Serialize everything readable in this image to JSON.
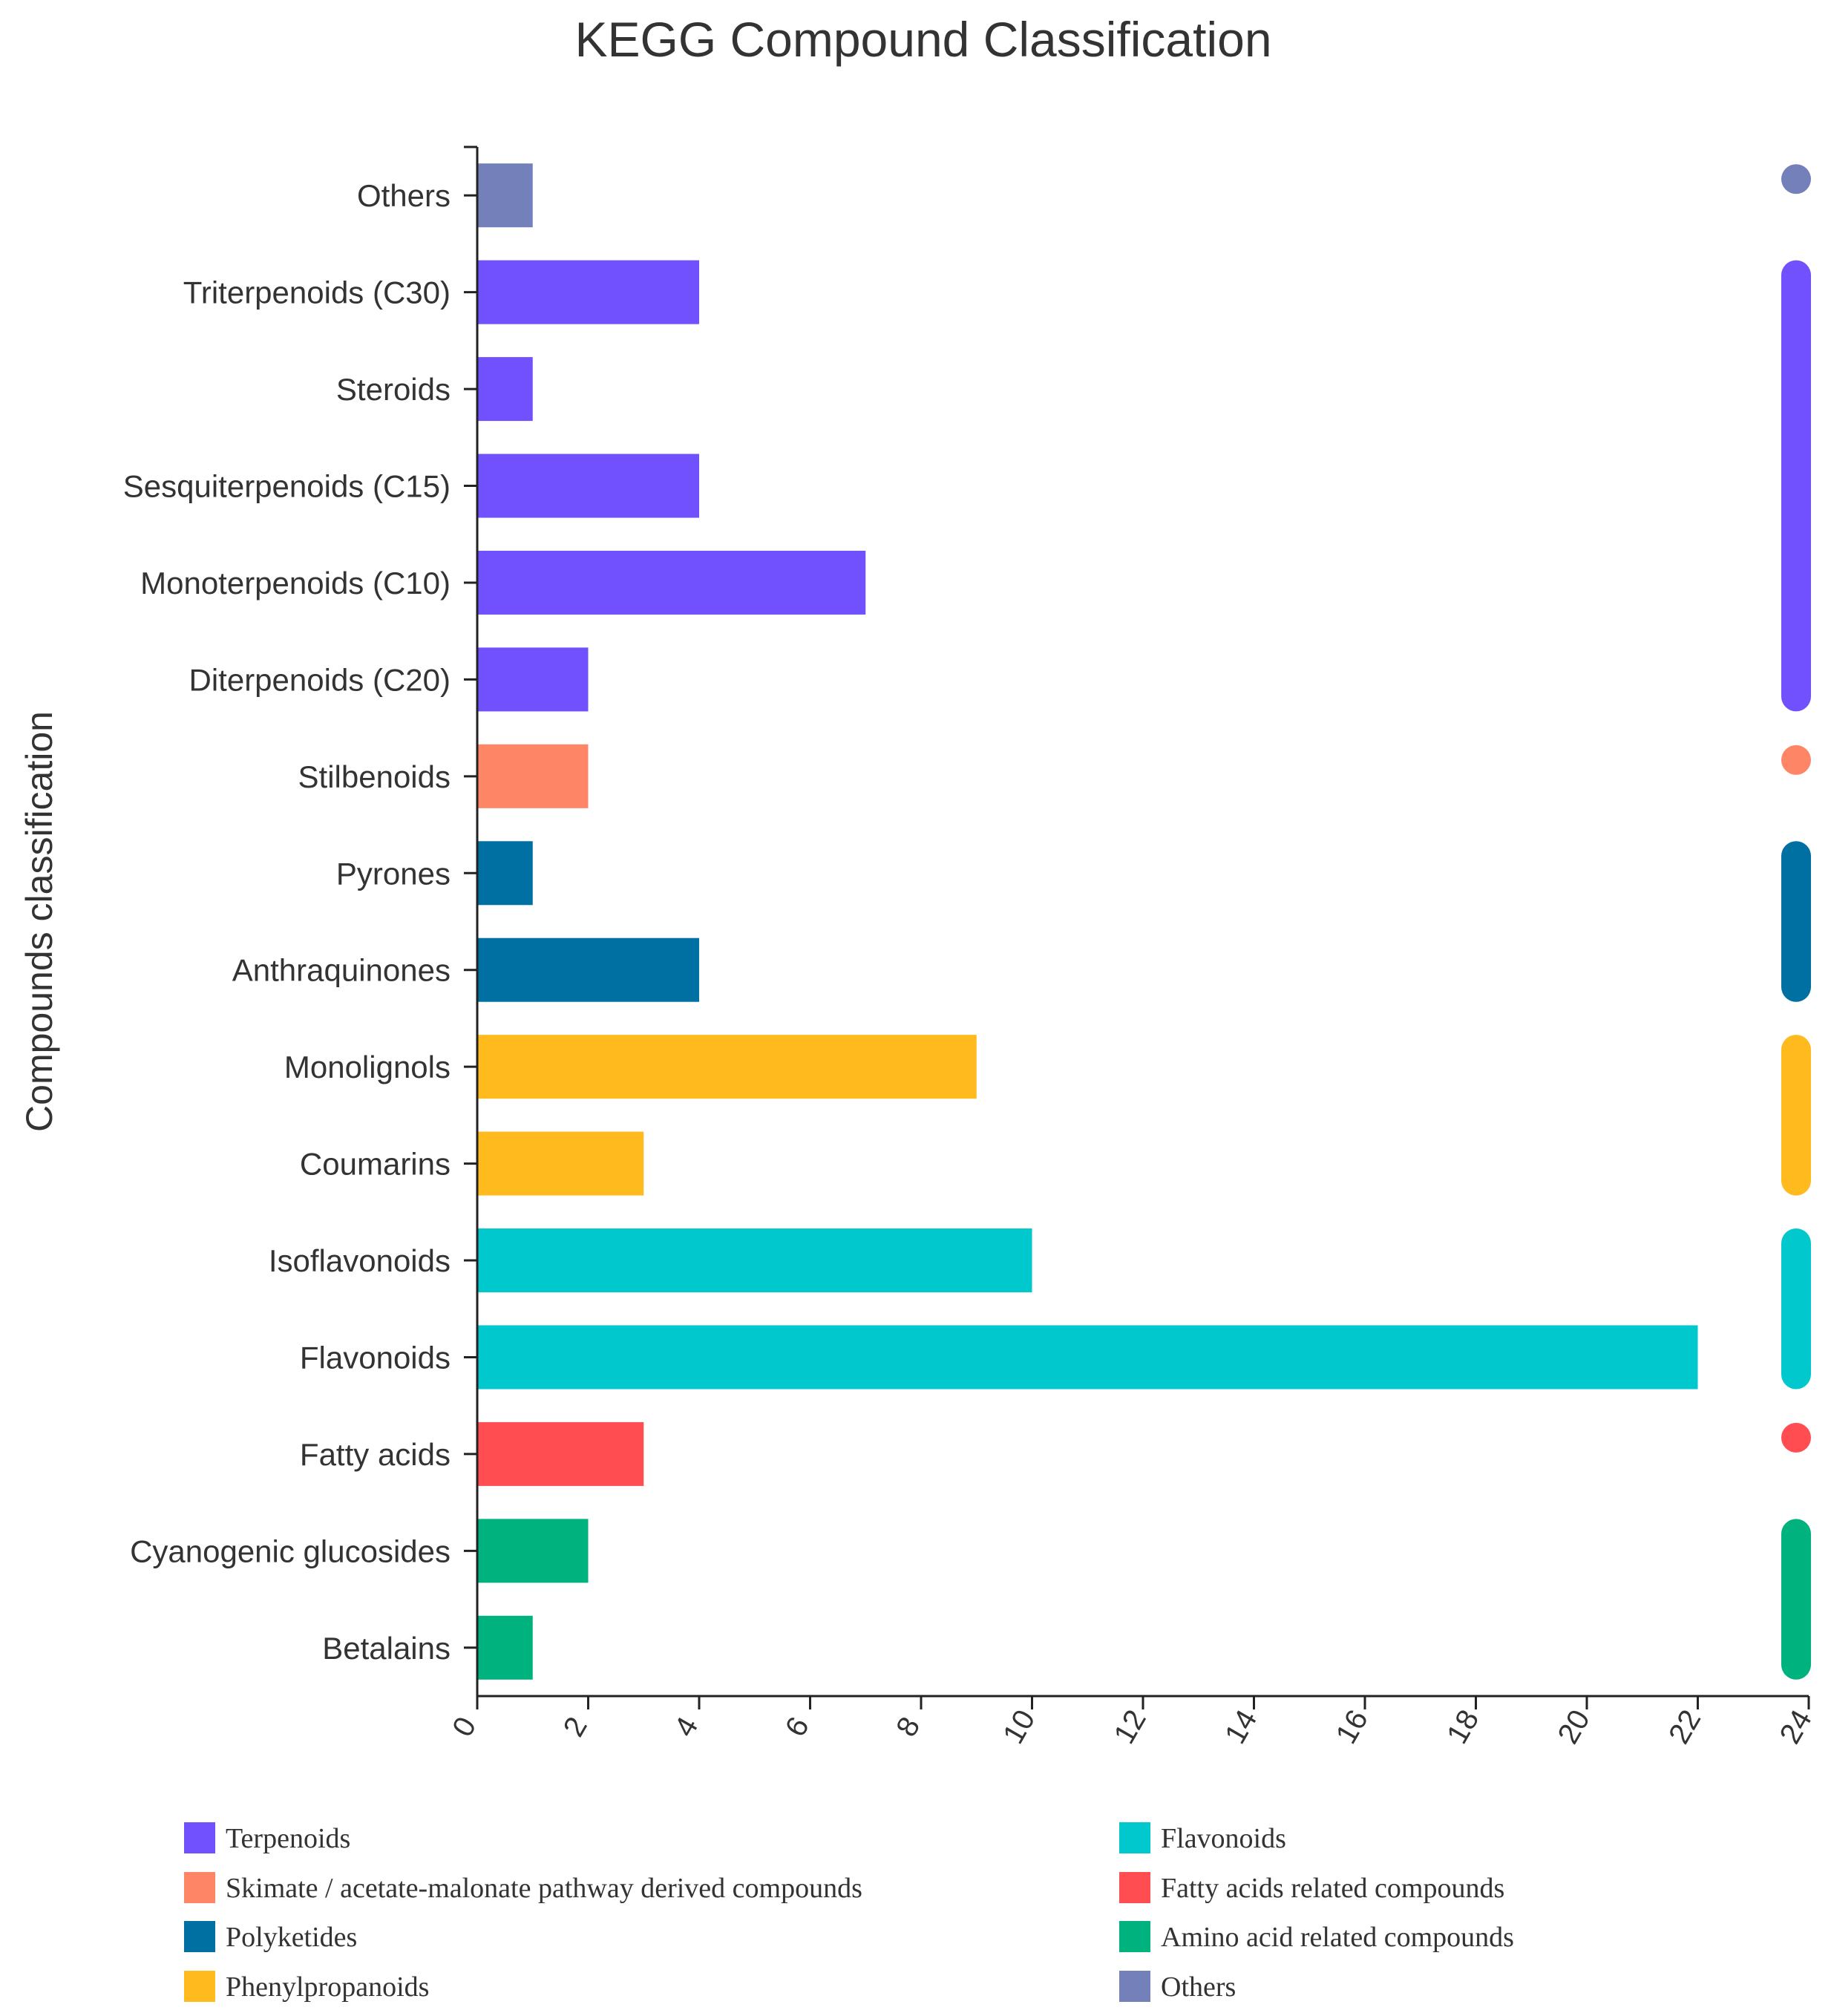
{
  "chart_data": {
    "type": "bar",
    "orientation": "horizontal",
    "title": "KEGG Compound Classification",
    "ylabel": "Compounds classification",
    "xlabel": "",
    "xlim": [
      0,
      24
    ],
    "xticks": [
      "0",
      "2",
      "4",
      "6",
      "8",
      "10",
      "12",
      "14",
      "16",
      "18",
      "20",
      "22",
      "24"
    ],
    "categories": [
      "Others",
      "Triterpenoids (C30)",
      "Steroids",
      "Sesquiterpenoids (C15)",
      "Monoterpenoids (C10)",
      "Diterpenoids (C20)",
      "Stilbenoids",
      "Pyrones",
      "Anthraquinones",
      "Monolignols",
      "Coumarins",
      "Isoflavonoids",
      "Flavonoids",
      "Fatty acids",
      "Cyanogenic glucosides",
      "Betalains"
    ],
    "values": [
      1,
      4,
      1,
      4,
      7,
      2,
      2,
      1,
      4,
      9,
      3,
      10,
      22,
      3,
      2,
      1
    ],
    "groups": [
      "Others",
      "Terpenoids",
      "Terpenoids",
      "Terpenoids",
      "Terpenoids",
      "Terpenoids",
      "Skimate / acetate-malonate pathway derived compounds",
      "Polyketides",
      "Polyketides",
      "Phenylpropanoids",
      "Phenylpropanoids",
      "Flavonoids",
      "Flavonoids",
      "Fatty acids related compounds",
      "Amino acid related compounds",
      "Amino acid related compounds"
    ],
    "legend": [
      {
        "name": "Terpenoids",
        "color": "#7150fe"
      },
      {
        "name": "Skimate / acetate-malonate pathway derived compounds",
        "color": "#ff8567"
      },
      {
        "name": "Polyketides",
        "color": "#006fa1"
      },
      {
        "name": "Phenylpropanoids",
        "color": "#ffba1e"
      },
      {
        "name": "Flavonoids",
        "color": "#00c8cc"
      },
      {
        "name": "Fatty acids related compounds",
        "color": "#ff4d52"
      },
      {
        "name": "Amino acid related compounds",
        "color": "#00b27e"
      },
      {
        "name": "Others",
        "color": "#7480b9"
      }
    ],
    "legend_position": "bottom",
    "grid": false
  }
}
